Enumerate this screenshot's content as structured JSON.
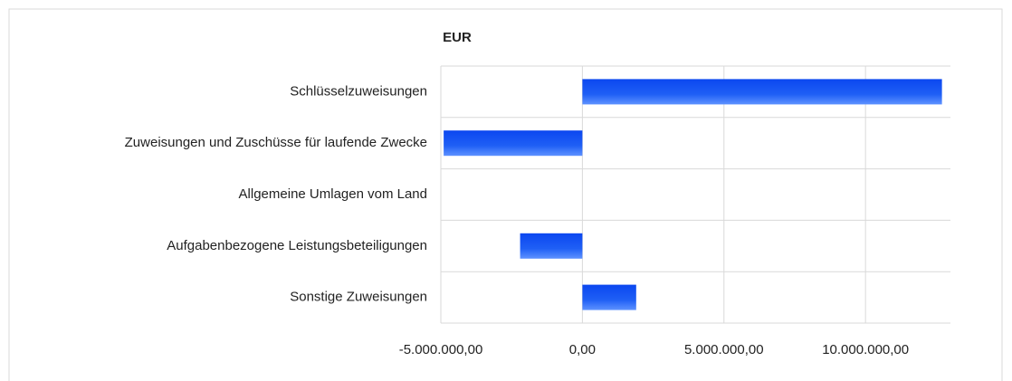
{
  "chart_data": {
    "type": "hbar",
    "title": "EUR",
    "categories": [
      "Schlüsselzuweisungen",
      "Zuweisungen und Zuschüsse für laufende Zwecke",
      "Allgemeine Umlagen vom Land",
      "Aufgabenbezogene Leistungsbeteiligungen",
      "Sonstige Zuweisungen"
    ],
    "values": [
      12700000,
      -4900000,
      0,
      -2200000,
      1900000
    ],
    "color": "#1f5ff5",
    "xlim": [
      -5000000,
      13000000
    ],
    "xticks": [
      {
        "value": -5000000,
        "label": "-5.000.000,00"
      },
      {
        "value": 0,
        "label": "0,00"
      },
      {
        "value": 5000000,
        "label": "5.000.000,00"
      },
      {
        "value": 10000000,
        "label": "10.000.000,00"
      }
    ],
    "grid": true
  }
}
